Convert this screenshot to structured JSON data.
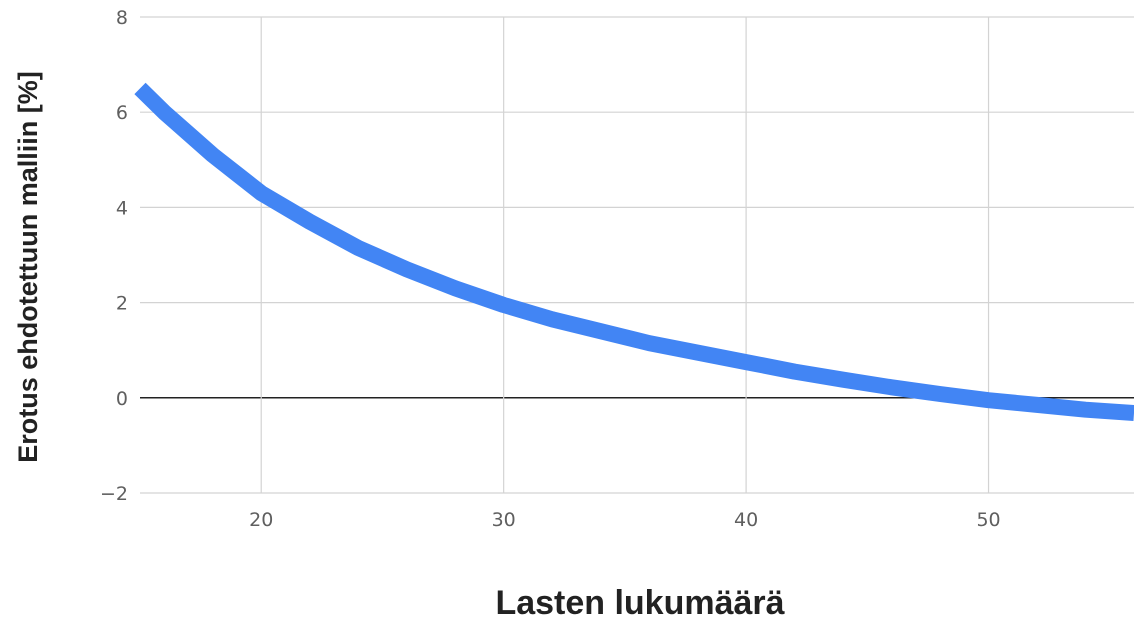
{
  "chart_data": {
    "type": "line",
    "title": "",
    "xlabel": "Lasten lukumäärä",
    "ylabel": "Erotus ehdotettuun malliin [%]",
    "xlim": [
      15,
      56
    ],
    "ylim": [
      -2,
      8
    ],
    "x_ticks": [
      20,
      30,
      40,
      50
    ],
    "y_ticks": [
      -2,
      0,
      2,
      4,
      6,
      8
    ],
    "x_tick_labels": [
      "20",
      "30",
      "40",
      "50"
    ],
    "y_tick_labels": [
      "−2",
      "0",
      "2",
      "4",
      "6",
      "8"
    ],
    "grid": true,
    "legend": "none",
    "series": [
      {
        "color": "#4285f4",
        "x": [
          15,
          16,
          17,
          18,
          19,
          20,
          22,
          24,
          26,
          28,
          30,
          32,
          34,
          36,
          38,
          40,
          42,
          44,
          46,
          48,
          50,
          52,
          54,
          56
        ],
        "y": [
          6.5,
          6.0,
          5.55,
          5.1,
          4.7,
          4.3,
          3.7,
          3.15,
          2.7,
          2.3,
          1.95,
          1.65,
          1.4,
          1.15,
          0.95,
          0.75,
          0.55,
          0.38,
          0.22,
          0.08,
          -0.05,
          -0.15,
          -0.25,
          -0.32
        ]
      }
    ]
  },
  "colors": {
    "grid": "#d3d3d3",
    "zero_line": "#222222",
    "series": "#4285f4"
  }
}
